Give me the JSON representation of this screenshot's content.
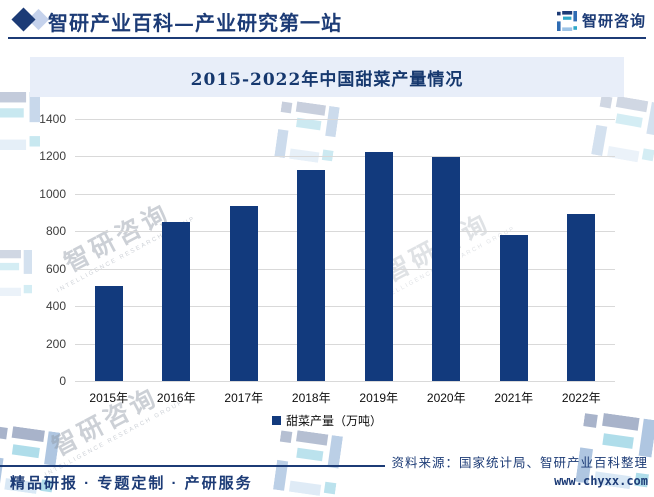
{
  "header": {
    "title": "智研产业百科—产业研究第一站",
    "brand": "智研咨询"
  },
  "chart_data": {
    "type": "bar",
    "title": "2015-2022年中国甜菜产量情况",
    "categories": [
      "2015年",
      "2016年",
      "2017年",
      "2018年",
      "2019年",
      "2020年",
      "2021年",
      "2022年"
    ],
    "values": [
      510,
      850,
      935,
      1125,
      1225,
      1195,
      780,
      890
    ],
    "legend": "甜菜产量（万吨）",
    "xlabel": "",
    "ylabel": "",
    "ylim": [
      0,
      1400
    ],
    "yticks": [
      0,
      200,
      400,
      600,
      800,
      1000,
      1200,
      1400
    ],
    "grid": true,
    "legend_position": "bottom",
    "bar_color": "#123a7d"
  },
  "footer": {
    "services": "精品研报 · 专题定制 · 产研服务",
    "source": "资料来源：国家统计局、智研产业百科整理",
    "website": "www.chyxx.com"
  },
  "watermark": {
    "text": "智研咨询",
    "subtext": "INTELLIGENCE RESEARCH GROUP"
  },
  "colors": {
    "navy": "#1c3b76",
    "bar": "#123a7d",
    "banner_bg": "#e8eef9",
    "gridline": "#d9d9d9"
  }
}
